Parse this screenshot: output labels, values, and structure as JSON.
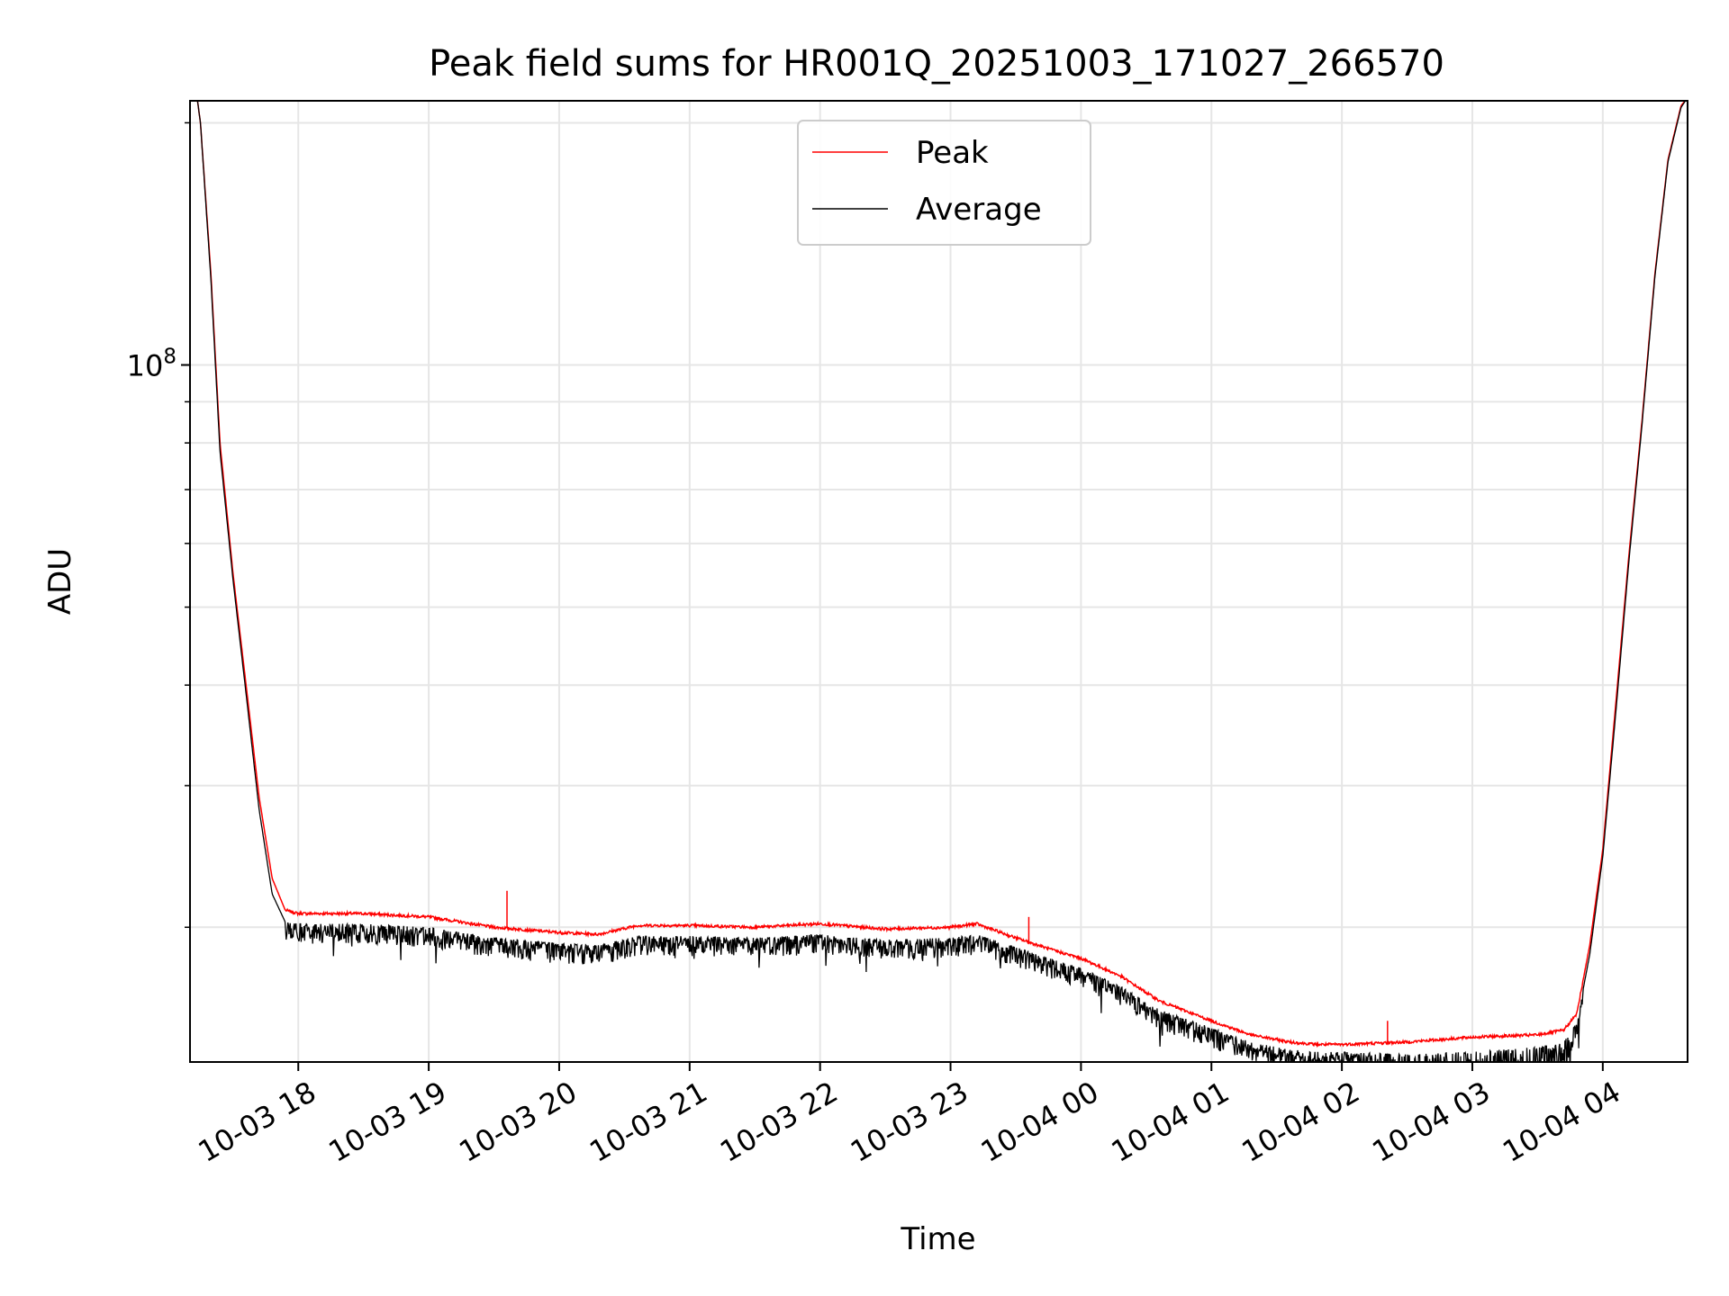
{
  "chart_data": {
    "type": "line",
    "title": "Peak field sums for HR001Q_20251003_171027_266570",
    "xlabel": "Time",
    "ylabel": "ADU",
    "yscale": "log",
    "grid": true,
    "legend_position": "top-center",
    "xlim_hours": [
      17.17,
      28.65
    ],
    "ylim": [
      13600000,
      213000000
    ],
    "x_ticks": [
      {
        "hour": 18,
        "label": "10-03 18"
      },
      {
        "hour": 19,
        "label": "10-03 19"
      },
      {
        "hour": 20,
        "label": "10-03 20"
      },
      {
        "hour": 21,
        "label": "10-03 21"
      },
      {
        "hour": 22,
        "label": "10-03 22"
      },
      {
        "hour": 23,
        "label": "10-03 23"
      },
      {
        "hour": 24,
        "label": "10-04 00"
      },
      {
        "hour": 25,
        "label": "10-04 01"
      },
      {
        "hour": 26,
        "label": "10-04 02"
      },
      {
        "hour": 27,
        "label": "10-04 03"
      },
      {
        "hour": 28,
        "label": "10-04 04"
      }
    ],
    "y_major_tick": {
      "value": 100000000,
      "base": "10",
      "exponent": "8"
    },
    "y_minor_ticks": [
      20000000,
      30000000,
      40000000,
      50000000,
      60000000,
      70000000,
      80000000,
      90000000,
      200000000
    ],
    "series": [
      {
        "name": "Peak",
        "color": "#ff0000",
        "x_hours": [
          17.17,
          17.25,
          17.33,
          17.4,
          17.5,
          17.6,
          17.7,
          17.8,
          17.9,
          18.0,
          18.5,
          19.0,
          19.5,
          20.0,
          20.3,
          20.6,
          21.0,
          21.5,
          22.0,
          22.5,
          23.0,
          23.2,
          23.5,
          23.8,
          24.0,
          24.3,
          24.6,
          25.0,
          25.3,
          25.6,
          25.8,
          26.0,
          26.5,
          27.0,
          27.5,
          27.7,
          27.8,
          27.9,
          28.0,
          28.1,
          28.2,
          28.3,
          28.4,
          28.5,
          28.6,
          28.65
        ],
        "values": [
          250000000,
          200000000,
          130000000,
          80000000,
          55000000,
          40000000,
          29000000,
          23000000,
          21000000,
          20800000,
          20800000,
          20600000,
          20000000,
          19700000,
          19600000,
          20100000,
          20100000,
          20000000,
          20200000,
          19900000,
          20000000,
          20200000,
          19400000,
          18700000,
          18300000,
          17400000,
          16200000,
          15300000,
          14700000,
          14400000,
          14300000,
          14300000,
          14400000,
          14600000,
          14700000,
          14900000,
          15600000,
          19000000,
          25000000,
          38000000,
          58000000,
          85000000,
          130000000,
          180000000,
          210000000,
          215000000
        ],
        "spikes": [
          {
            "hour": 19.6,
            "value": 22200000
          },
          {
            "hour": 23.6,
            "value": 20600000
          },
          {
            "hour": 26.35,
            "value": 15300000
          }
        ]
      },
      {
        "name": "Average",
        "color": "#000000",
        "x_hours": [
          17.17,
          17.25,
          17.33,
          17.4,
          17.5,
          17.6,
          17.7,
          17.8,
          17.9,
          18.0,
          18.5,
          19.0,
          19.5,
          20.0,
          20.3,
          20.6,
          21.0,
          21.5,
          22.0,
          22.5,
          23.0,
          23.2,
          23.5,
          23.8,
          24.0,
          24.3,
          24.6,
          25.0,
          25.3,
          25.6,
          25.8,
          26.0,
          26.5,
          27.0,
          27.5,
          27.7,
          27.8,
          27.9,
          28.0,
          28.1,
          28.2,
          28.3,
          28.4,
          28.5,
          28.6,
          28.65
        ],
        "values": [
          250000000,
          200000000,
          128000000,
          78000000,
          54000000,
          39000000,
          28000000,
          22000000,
          20300000,
          20200000,
          20200000,
          20000000,
          19400000,
          19100000,
          19000000,
          19500000,
          19500000,
          19400000,
          19600000,
          19300000,
          19400000,
          19600000,
          18900000,
          18200000,
          17800000,
          16900000,
          15800000,
          15000000,
          14400000,
          14100000,
          14000000,
          14000000,
          13900000,
          14000000,
          14200000,
          14400000,
          15200000,
          18500000,
          24500000,
          37000000,
          57000000,
          84000000,
          129000000,
          179000000,
          209000000,
          215000000
        ]
      }
    ]
  }
}
